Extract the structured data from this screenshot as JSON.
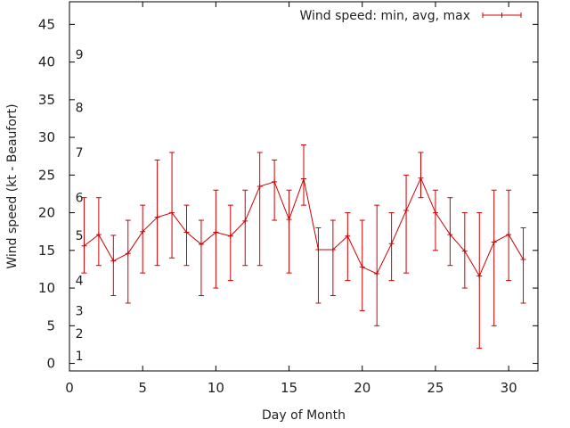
{
  "chart_data": {
    "type": "line",
    "title": "",
    "xlabel": "Day of Month",
    "ylabel": "Wind speed (kt - Beaufort)",
    "xlim": [
      0,
      32
    ],
    "ylim": [
      -1,
      48
    ],
    "xticks": [
      0,
      5,
      10,
      15,
      20,
      25,
      30
    ],
    "yticks": [
      0,
      5,
      10,
      15,
      20,
      25,
      30,
      35,
      40,
      45
    ],
    "grid": false,
    "legend_position": "top-right",
    "series_color": "#cc0000",
    "series": [
      {
        "name": "Wind speed: min, avg, max",
        "x": [
          1,
          2,
          3,
          4,
          5,
          6,
          7,
          8,
          9,
          10,
          11,
          12,
          13,
          14,
          15,
          16,
          17,
          18,
          19,
          20,
          21,
          22,
          23,
          24,
          25,
          26,
          27,
          28,
          29,
          30,
          31
        ],
        "avg": [
          15.6,
          17.1,
          13.6,
          14.6,
          17.5,
          19.4,
          20.0,
          17.4,
          15.8,
          17.4,
          16.9,
          18.9,
          23.5,
          24.1,
          19.1,
          24.5,
          15.1,
          15.1,
          16.9,
          12.8,
          11.9,
          15.9,
          20.3,
          24.6,
          20.0,
          17.1,
          14.9,
          11.6,
          16.1,
          17.1,
          13.8
        ],
        "min": [
          12,
          13,
          9,
          8,
          12,
          13,
          14,
          13,
          9,
          10,
          11,
          13,
          13,
          19,
          12,
          21,
          8,
          9,
          11,
          7,
          5,
          11,
          12,
          22,
          15,
          13,
          10,
          2,
          5,
          11,
          8
        ],
        "max": [
          22,
          22,
          17,
          19,
          21,
          27,
          28,
          21,
          19,
          23,
          21,
          23,
          28,
          27,
          23,
          29,
          18,
          19,
          20,
          19,
          21,
          20,
          25,
          28,
          23,
          22,
          20,
          20,
          23,
          23,
          18
        ]
      }
    ],
    "annotations": [
      {
        "text": "1",
        "y": 1.0
      },
      {
        "text": "2",
        "y": 4.0
      },
      {
        "text": "3",
        "y": 7.0
      },
      {
        "text": "4",
        "y": 11.0
      },
      {
        "text": "5",
        "y": 17.0
      },
      {
        "text": "6",
        "y": 22.0
      },
      {
        "text": "7",
        "y": 28.0
      },
      {
        "text": "8",
        "y": 34.0
      },
      {
        "text": "9",
        "y": 41.0
      }
    ]
  }
}
